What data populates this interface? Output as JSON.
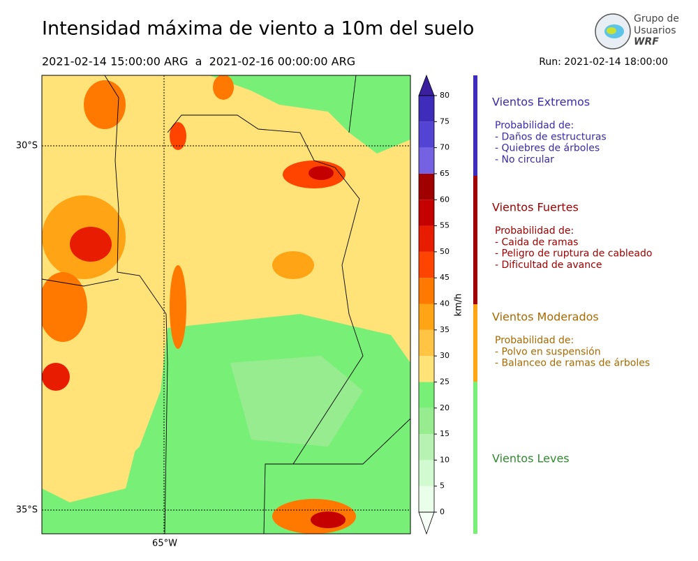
{
  "header": {
    "title": "Intensidad máxima de viento a 10m del suelo",
    "period": "2021-02-14 15:00:00 ARG  a  2021-02-16 00:00:00 ARG",
    "run": "Run: 2021-02-14 18:00:00",
    "logo": [
      "Grupo de",
      "Usuarios",
      "WRF"
    ]
  },
  "map": {
    "lat_labels": [
      "30°S",
      "35°S"
    ],
    "lon_labels": [
      "65°W"
    ]
  },
  "colorbar": {
    "label": "km/h",
    "lim": [
      0,
      80
    ],
    "ticks": [
      0,
      5,
      10,
      15,
      20,
      25,
      30,
      35,
      40,
      45,
      50,
      55,
      60,
      65,
      70,
      75,
      80
    ],
    "colors": [
      "#eaffea",
      "#d2fad0",
      "#b8f2b2",
      "#98ec90",
      "#78f078",
      "#ffe278",
      "#ffc444",
      "#ffa414",
      "#ff7800",
      "#ff4400",
      "#e81c00",
      "#c40000",
      "#a00000",
      "#7462e2",
      "#5444d4",
      "#3e2cba"
    ],
    "extend_colors": [
      "#f6fff6",
      "#3a209e"
    ]
  },
  "legend": [
    {
      "title": "Vientos Extremos",
      "color": "#3a2aa8",
      "bar": "#3e2cba",
      "lines": [
        "Probabilidad de:",
        "- Daños de estructuras",
        "- Quiebres de árboles",
        "- No circular"
      ]
    },
    {
      "title": "Vientos Fuertes",
      "color": "#a00000",
      "bar": "#a00000",
      "lines": [
        "Probabilidad de:",
        "- Caida de ramas",
        "- Peligro de ruptura de cableado",
        "- Dificultad de avance"
      ]
    },
    {
      "title": "Vientos Moderados",
      "color": "#a86a00",
      "bar": "#ffa414",
      "lines": [
        "Probabilidad de:",
        "- Polvo en suspensión",
        "- Balanceo de ramas de árboles"
      ]
    },
    {
      "title": "Vientos Leves",
      "color": "#2e8b2e",
      "bar": "#78f078",
      "lines": []
    }
  ]
}
